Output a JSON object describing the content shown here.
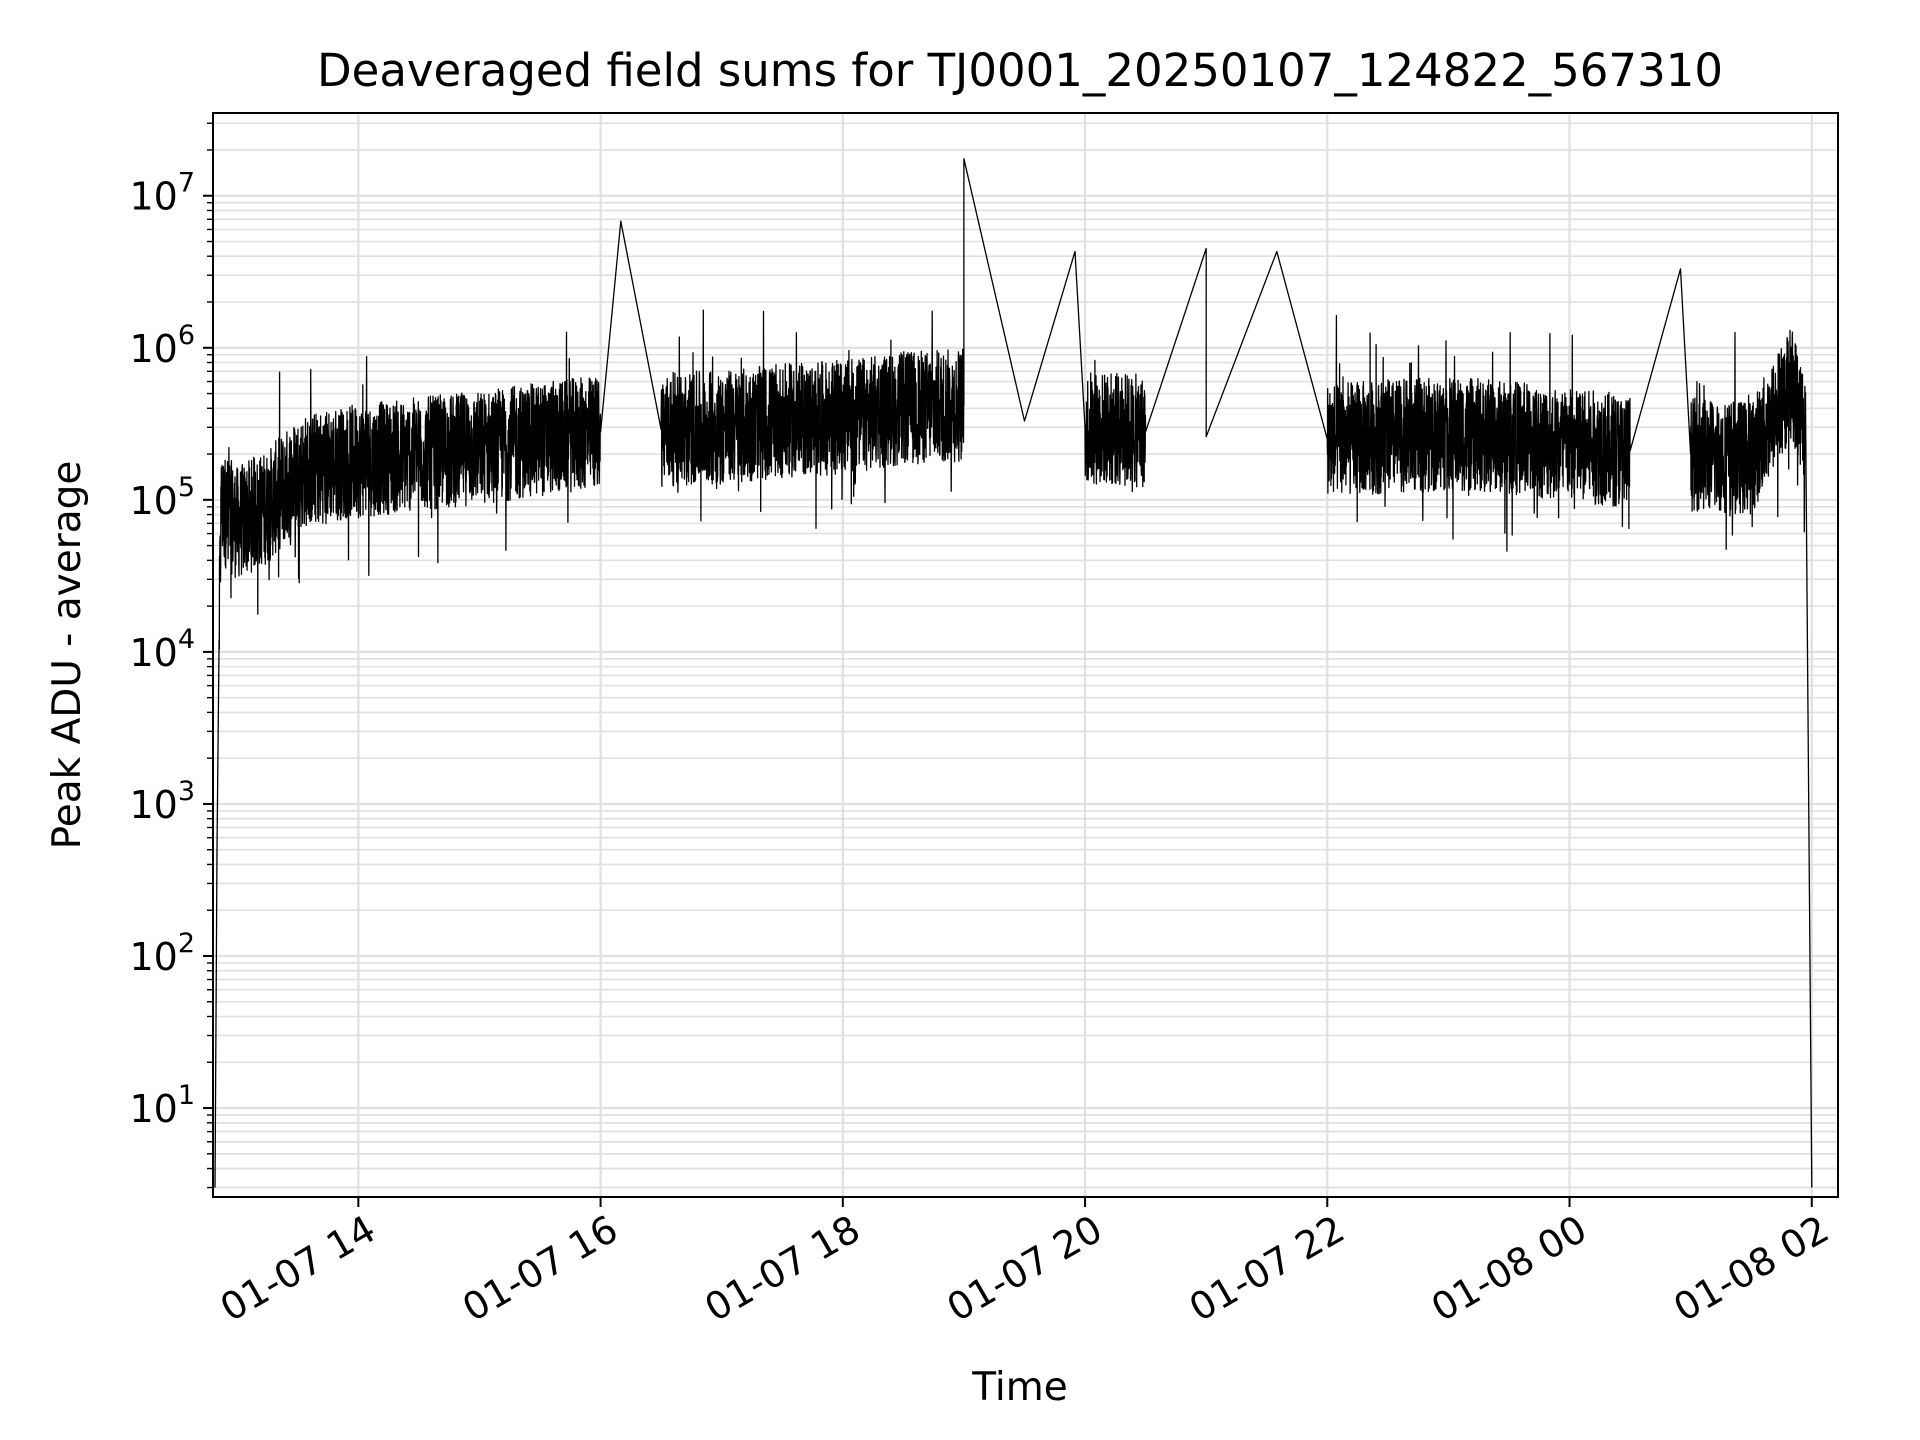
{
  "chart_data": {
    "type": "line",
    "title": "Deaveraged field sums for TJ0001_20250107_124822_567310",
    "xlabel": "Time",
    "ylabel": "Peak ADU - average",
    "yscale": "log",
    "ylim": [
      2.6,
      35000000
    ],
    "xlim": [
      "2025-01-07 12:48",
      "2025-01-08 02:13"
    ],
    "grid": true,
    "line_color": "#000000",
    "grid_color": "#e0e0e0",
    "x_ticks": [
      {
        "value": "2025-01-07 14:00",
        "label": "01-07 14"
      },
      {
        "value": "2025-01-07 16:00",
        "label": "01-07 16"
      },
      {
        "value": "2025-01-07 18:00",
        "label": "01-07 18"
      },
      {
        "value": "2025-01-07 20:00",
        "label": "01-07 20"
      },
      {
        "value": "2025-01-07 22:00",
        "label": "01-07 22"
      },
      {
        "value": "2025-01-08 00:00",
        "label": "01-08 00"
      },
      {
        "value": "2025-01-08 02:00",
        "label": "01-08 02"
      }
    ],
    "y_ticks": [
      {
        "value": 10,
        "base": "10",
        "exp": "1"
      },
      {
        "value": 100,
        "base": "10",
        "exp": "2"
      },
      {
        "value": 1000,
        "base": "10",
        "exp": "3"
      },
      {
        "value": 10000,
        "base": "10",
        "exp": "4"
      },
      {
        "value": 100000,
        "base": "10",
        "exp": "5"
      },
      {
        "value": 1000000,
        "base": "10",
        "exp": "6"
      },
      {
        "value": 10000000,
        "base": "10",
        "exp": "7"
      }
    ],
    "series": [
      {
        "points": [
          [
            "2025-01-07 12:49",
            3
          ],
          [
            "2025-01-07 12:50",
            500
          ],
          [
            "2025-01-07 12:51",
            12000
          ],
          [
            "2025-01-07 12:52",
            90000
          ],
          [
            "2025-01-07 13:00",
            70000
          ],
          [
            "2025-01-07 13:15",
            90000
          ],
          [
            "2025-01-07 13:30",
            150000
          ],
          [
            "2025-01-07 13:45",
            170000
          ],
          [
            "2025-01-07 14:00",
            180000
          ],
          [
            "2025-01-07 14:30",
            200000
          ],
          [
            "2025-01-07 15:00",
            220000
          ],
          [
            "2025-01-07 15:30",
            250000
          ],
          [
            "2025-01-07 16:00",
            280000
          ],
          [
            "2025-01-07 16:10",
            6800000
          ],
          [
            "2025-01-07 16:30",
            290000
          ],
          [
            "2025-01-07 17:00",
            300000
          ],
          [
            "2025-01-07 17:30",
            330000
          ],
          [
            "2025-01-07 18:00",
            350000
          ],
          [
            "2025-01-07 18:30",
            400000
          ],
          [
            "2025-01-07 19:00",
            420000
          ],
          [
            "2025-01-07 19:00",
            17500000
          ],
          [
            "2025-01-07 19:30",
            330000
          ],
          [
            "2025-01-07 19:55",
            4300000
          ],
          [
            "2025-01-07 20:00",
            300000
          ],
          [
            "2025-01-07 20:30",
            280000
          ],
          [
            "2025-01-07 21:00",
            4500000
          ],
          [
            "2025-01-07 21:00",
            260000
          ],
          [
            "2025-01-07 21:35",
            4300000
          ],
          [
            "2025-01-07 22:00",
            250000
          ],
          [
            "2025-01-07 22:30",
            260000
          ],
          [
            "2025-01-07 23:00",
            270000
          ],
          [
            "2025-01-07 23:30",
            260000
          ],
          [
            "2025-01-08 00:00",
            230000
          ],
          [
            "2025-01-08 00:30",
            210000
          ],
          [
            "2025-01-08 00:55",
            3300000
          ],
          [
            "2025-01-08 01:00",
            200000
          ],
          [
            "2025-01-08 01:30",
            190000
          ],
          [
            "2025-01-08 01:50",
            600000
          ],
          [
            "2025-01-08 01:57",
            300000
          ],
          [
            "2025-01-08 02:00",
            3
          ]
        ]
      }
    ]
  }
}
